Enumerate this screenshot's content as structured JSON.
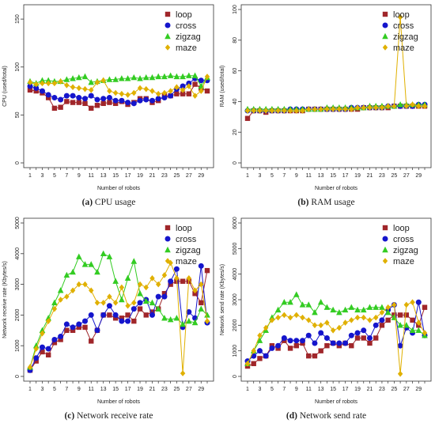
{
  "chart_data": [
    {
      "type": "line",
      "caption_tag": "(a)",
      "caption_text": "CPU usage",
      "xlabel": "Number of robots",
      "ylabel": "CPU (used/total)",
      "xlim": [
        1,
        30
      ],
      "ylim": [
        0,
        160
      ],
      "yticks": [
        0,
        50,
        100,
        150
      ],
      "xticks": [
        1,
        3,
        5,
        7,
        9,
        11,
        13,
        15,
        17,
        19,
        21,
        23,
        25,
        27,
        29
      ],
      "legend": "top-right",
      "x": [
        1,
        2,
        3,
        4,
        5,
        6,
        7,
        8,
        9,
        10,
        11,
        12,
        13,
        14,
        15,
        16,
        17,
        18,
        19,
        20,
        21,
        22,
        23,
        24,
        25,
        26,
        27,
        28,
        29,
        30
      ],
      "series": [
        {
          "name": "loop",
          "color": "#a0262a",
          "marker": "square",
          "values": [
            76,
            75,
            73,
            68,
            57,
            58,
            64,
            63,
            63,
            62,
            57,
            60,
            62,
            63,
            62,
            64,
            61,
            63,
            67,
            67,
            63,
            65,
            70,
            70,
            72,
            72,
            72,
            82,
            78,
            75
          ]
        },
        {
          "name": "cross",
          "color": "#1515cc",
          "marker": "circle",
          "values": [
            80,
            78,
            75,
            71,
            68,
            66,
            70,
            70,
            68,
            67,
            70,
            66,
            67,
            68,
            65,
            65,
            63,
            62,
            65,
            66,
            65,
            67,
            68,
            70,
            77,
            80,
            83,
            88,
            86,
            86
          ]
        },
        {
          "name": "zigzag",
          "color": "#33cc22",
          "marker": "triangle",
          "values": [
            85,
            83,
            86,
            86,
            85,
            85,
            87,
            88,
            89,
            90,
            84,
            85,
            86,
            87,
            87,
            88,
            88,
            89,
            88,
            89,
            89,
            90,
            90,
            91,
            90,
            90,
            91,
            91,
            80,
            89
          ]
        },
        {
          "name": "maze",
          "color": "#e0b000",
          "marker": "diamond",
          "values": [
            84,
            82,
            83,
            83,
            83,
            85,
            81,
            79,
            78,
            77,
            76,
            84,
            86,
            75,
            73,
            72,
            71,
            73,
            78,
            77,
            75,
            72,
            73,
            75,
            79,
            76,
            80,
            70,
            75,
            90
          ]
        }
      ]
    },
    {
      "type": "line",
      "caption_tag": "(b)",
      "caption_text": "RAM usage",
      "xlabel": "Number of robots",
      "ylabel": "RAM (used/total)",
      "xlim": [
        1,
        30
      ],
      "ylim": [
        0,
        100
      ],
      "yticks": [
        0,
        20,
        40,
        60,
        80,
        100
      ],
      "xticks": [
        1,
        3,
        5,
        7,
        9,
        11,
        13,
        15,
        17,
        19,
        21,
        23,
        25,
        27,
        29
      ],
      "legend": "top-right",
      "x": [
        1,
        2,
        3,
        4,
        5,
        6,
        7,
        8,
        9,
        10,
        11,
        12,
        13,
        14,
        15,
        16,
        17,
        18,
        19,
        20,
        21,
        22,
        23,
        24,
        25,
        26,
        27,
        28,
        29,
        30
      ],
      "series": [
        {
          "name": "loop",
          "color": "#a0262a",
          "marker": "square",
          "values": [
            29,
            34,
            34,
            33,
            34,
            34,
            34,
            34,
            34,
            34,
            35,
            35,
            35,
            35,
            35,
            35,
            35,
            35,
            35,
            36,
            36,
            36,
            36,
            36,
            37,
            37,
            37,
            37,
            37,
            37
          ]
        },
        {
          "name": "cross",
          "color": "#1515cc",
          "marker": "circle",
          "values": [
            34,
            34,
            34,
            34,
            34,
            34,
            34,
            35,
            35,
            35,
            35,
            35,
            35,
            35,
            35,
            35,
            35,
            36,
            36,
            36,
            36,
            36,
            36,
            37,
            37,
            37,
            37,
            37,
            38,
            38
          ]
        },
        {
          "name": "zigzag",
          "color": "#33cc22",
          "marker": "triangle",
          "values": [
            35,
            35,
            35,
            35,
            35,
            35,
            35,
            35,
            35,
            35,
            35,
            35,
            35,
            36,
            36,
            36,
            36,
            36,
            36,
            36,
            37,
            37,
            37,
            37,
            37,
            38,
            38,
            38,
            38,
            38
          ]
        },
        {
          "name": "maze",
          "color": "#e0b000",
          "marker": "diamond",
          "values": [
            34,
            34,
            34,
            34,
            34,
            34,
            34,
            34,
            34,
            34,
            35,
            35,
            35,
            35,
            35,
            35,
            35,
            35,
            36,
            36,
            36,
            36,
            36,
            37,
            37,
            95,
            37,
            38,
            37,
            37
          ]
        }
      ]
    },
    {
      "type": "line",
      "caption_tag": "(c)",
      "caption_text": "Network receive rate",
      "xlabel": "Number of robots",
      "ylabel": "Network receive rate (Kbytes/s)",
      "xlim": [
        1,
        30
      ],
      "ylim": [
        0,
        5000
      ],
      "yticks": [
        0,
        1000,
        2000,
        3000,
        4000,
        5000
      ],
      "xticks": [
        1,
        3,
        5,
        7,
        9,
        11,
        13,
        15,
        17,
        19,
        21,
        23,
        25,
        27,
        29
      ],
      "legend": "top-right",
      "x": [
        1,
        2,
        3,
        4,
        5,
        6,
        7,
        8,
        9,
        10,
        11,
        12,
        13,
        14,
        15,
        16,
        17,
        18,
        19,
        20,
        21,
        22,
        23,
        24,
        25,
        26,
        27,
        28,
        29,
        30
      ],
      "series": [
        {
          "name": "loop",
          "color": "#a0262a",
          "marker": "square",
          "values": [
            200,
            500,
            800,
            700,
            1100,
            1200,
            1500,
            1500,
            1600,
            1600,
            1150,
            1500,
            2000,
            2000,
            1900,
            1900,
            2000,
            1800,
            2200,
            2000,
            2100,
            2200,
            2700,
            3000,
            3100,
            3100,
            3100,
            2700,
            2400,
            3450
          ]
        },
        {
          "name": "cross",
          "color": "#1515cc",
          "marker": "circle",
          "values": [
            200,
            600,
            950,
            900,
            1200,
            1300,
            1700,
            1600,
            1700,
            1800,
            2000,
            1500,
            2000,
            2300,
            2000,
            1800,
            1800,
            2200,
            2400,
            2500,
            2000,
            2600,
            2600,
            3100,
            3500,
            1600,
            2100,
            1900,
            3600,
            1750
          ]
        },
        {
          "name": "zigzag",
          "color": "#33cc22",
          "marker": "triangle",
          "values": [
            300,
            1000,
            1500,
            1900,
            2400,
            2800,
            3300,
            3400,
            3900,
            3650,
            3650,
            3400,
            4000,
            3900,
            3100,
            2500,
            3200,
            3750,
            2700,
            2450,
            2400,
            2200,
            1900,
            1850,
            1900,
            1700,
            1800,
            1750,
            2200,
            2000
          ]
        },
        {
          "name": "maze",
          "color": "#e0b000",
          "marker": "diamond",
          "values": [
            300,
            900,
            1400,
            1800,
            2200,
            2500,
            2600,
            2800,
            3000,
            3000,
            2800,
            2400,
            2400,
            2600,
            2400,
            2900,
            2300,
            2400,
            3000,
            2900,
            3200,
            3000,
            3300,
            3700,
            3200,
            100,
            3200,
            2800,
            3000,
            1800
          ]
        }
      ]
    },
    {
      "type": "line",
      "caption_tag": "(d)",
      "caption_text": "Network send rate",
      "xlabel": "Number of robots",
      "ylabel": "Network send rate (Kbytes/s)",
      "xlim": [
        1,
        30
      ],
      "ylim": [
        0,
        6000
      ],
      "yticks": [
        0,
        1000,
        2000,
        3000,
        4000,
        5000,
        6000
      ],
      "xticks": [
        1,
        3,
        5,
        7,
        9,
        11,
        13,
        15,
        17,
        19,
        21,
        23,
        25,
        27,
        29
      ],
      "legend": "top-right",
      "x": [
        1,
        2,
        3,
        4,
        5,
        6,
        7,
        8,
        9,
        10,
        11,
        12,
        13,
        14,
        15,
        16,
        17,
        18,
        19,
        20,
        21,
        22,
        23,
        24,
        25,
        26,
        27,
        28,
        29,
        30
      ],
      "series": [
        {
          "name": "loop",
          "color": "#a0262a",
          "marker": "square",
          "values": [
            400,
            500,
            700,
            800,
            1200,
            1100,
            1400,
            1100,
            1200,
            1300,
            800,
            800,
            1000,
            1200,
            1300,
            1200,
            1300,
            1200,
            1500,
            1500,
            1300,
            1500,
            2000,
            2200,
            2400,
            2400,
            2400,
            2200,
            2000,
            2700
          ]
        },
        {
          "name": "cross",
          "color": "#1515cc",
          "marker": "circle",
          "values": [
            600,
            800,
            1000,
            800,
            1100,
            1200,
            1500,
            1400,
            1400,
            1400,
            1600,
            1300,
            1700,
            1500,
            1300,
            1300,
            1300,
            1600,
            1700,
            1800,
            1500,
            2000,
            2200,
            2600,
            2800,
            1200,
            1900,
            1700,
            2900,
            1600
          ]
        },
        {
          "name": "zigzag",
          "color": "#33cc22",
          "marker": "triangle",
          "values": [
            500,
            1000,
            1400,
            1800,
            2300,
            2600,
            2900,
            2900,
            3200,
            2800,
            2800,
            2500,
            2900,
            2700,
            2600,
            2500,
            2600,
            2700,
            2600,
            2600,
            2700,
            2700,
            2700,
            2500,
            2300,
            2000,
            2000,
            1800,
            1800,
            1600
          ]
        },
        {
          "name": "maze",
          "color": "#e0b000",
          "marker": "diamond",
          "values": [
            500,
            1000,
            1600,
            1900,
            2200,
            2300,
            2400,
            2300,
            2400,
            2300,
            2200,
            2000,
            2000,
            2100,
            1800,
            1900,
            2100,
            2200,
            2300,
            2300,
            2200,
            2300,
            2500,
            2700,
            2800,
            100,
            2800,
            2900,
            2100,
            1700
          ]
        }
      ]
    }
  ]
}
